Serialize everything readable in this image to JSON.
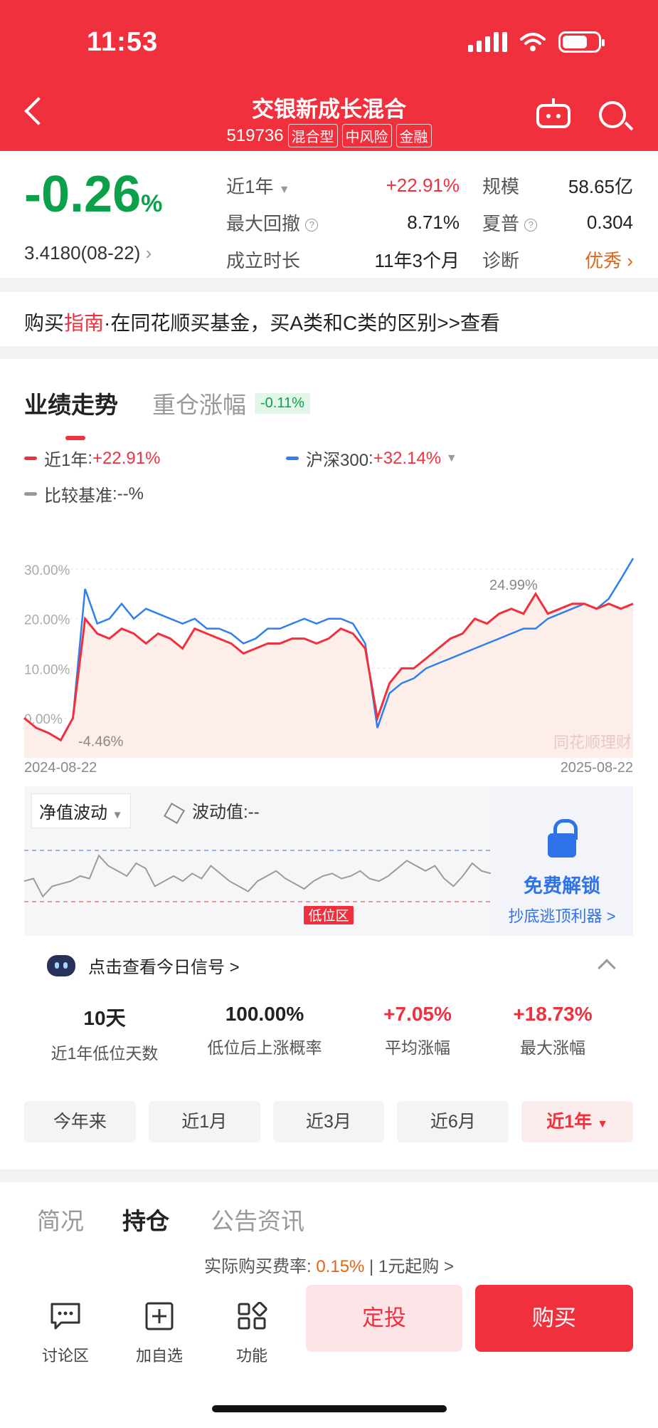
{
  "status": {
    "time": "11:53"
  },
  "header": {
    "title": "交银新成长混合",
    "code": "519736",
    "tags": [
      "混合型",
      "中风险",
      "金融"
    ]
  },
  "summary": {
    "change": "-0.26",
    "change_unit": "%",
    "nav": "3.4180(08-22)",
    "rows": [
      {
        "label": "近1年",
        "value": "+22.91%",
        "label2": "规模",
        "value2": "58.65亿"
      },
      {
        "label": "最大回撤",
        "value": "8.71%",
        "label2": "夏普",
        "value2": "0.304"
      },
      {
        "label": "成立时长",
        "value": "11年3个月",
        "label2": "诊断",
        "value2": "优秀"
      }
    ]
  },
  "guide": {
    "prefix": "购买",
    "highlight": "指南",
    "text": "·在同花顺买基金，买A类和C类的区别>>查看"
  },
  "perf": {
    "tab_active": "业绩走势",
    "tab_inactive": "重仓涨幅",
    "tab_badge": "-0.11%",
    "legend": [
      {
        "name": "近1年",
        "value": "+22.91%",
        "color": "#f0313d"
      },
      {
        "name": "沪深300",
        "value": "+32.14%",
        "color": "#2f80ed"
      },
      {
        "name": "比较基准",
        "value": "--%",
        "color": "#999999"
      }
    ]
  },
  "chart_data": {
    "type": "line",
    "y_ticks": [
      "30.00%",
      "20.00%",
      "10.00%",
      "0.00%"
    ],
    "ylim": [
      -8,
      35
    ],
    "x_ticks": [
      "2024-08-22",
      "2025-08-22"
    ],
    "annotations": [
      {
        "text": "24.99%"
      },
      {
        "text": "-4.46%"
      }
    ],
    "watermark": "同花顺理财",
    "series": [
      {
        "name": "近1年",
        "color": "#f0313d",
        "values": [
          0,
          -2,
          -3,
          -4.46,
          0,
          20,
          17,
          16,
          18,
          17,
          15,
          17,
          16,
          14,
          18,
          17,
          16,
          15,
          13,
          14,
          15,
          15,
          16,
          16,
          15,
          16,
          18,
          17,
          14,
          0,
          7,
          10,
          10,
          12,
          14,
          16,
          17,
          20,
          19,
          21,
          22,
          21,
          24.99,
          21,
          22,
          23,
          23,
          22,
          23,
          22,
          23
        ]
      },
      {
        "name": "沪深300",
        "color": "#2f80ed",
        "values": [
          0,
          -2,
          -3,
          -4.4,
          0,
          26,
          19,
          20,
          23,
          20,
          22,
          21,
          20,
          19,
          20,
          18,
          18,
          17,
          15,
          16,
          18,
          18,
          19,
          20,
          19,
          20,
          20,
          19,
          15,
          -2,
          5,
          7,
          8,
          10,
          11,
          12,
          13,
          14,
          15,
          16,
          17,
          18,
          18,
          20,
          21,
          22,
          23,
          22,
          24,
          28,
          32.14
        ]
      }
    ]
  },
  "volatility": {
    "select": "净值波动",
    "value_label": "波动值:--",
    "low_label": "低位区",
    "series": [
      0.4,
      0.45,
      0.1,
      0.3,
      0.35,
      0.4,
      0.5,
      0.45,
      0.9,
      0.7,
      0.6,
      0.5,
      0.75,
      0.65,
      0.3,
      0.4,
      0.5,
      0.4,
      0.55,
      0.45,
      0.7,
      0.55,
      0.4,
      0.3,
      0.2,
      0.4,
      0.5,
      0.6,
      0.45,
      0.35,
      0.25,
      0.4,
      0.5,
      0.55,
      0.45,
      0.5,
      0.6,
      0.45,
      0.4,
      0.5,
      0.65,
      0.8,
      0.7,
      0.6,
      0.7,
      0.45,
      0.3,
      0.5,
      0.75,
      0.6,
      0.55
    ],
    "unlock_title": "免费解锁",
    "unlock_sub": "抄底逃顶利器 >"
  },
  "signal": {
    "head": "点击查看今日信号 >",
    "stats": [
      {
        "value": "10天",
        "label": "近1年低位天数",
        "color": "#222222"
      },
      {
        "value": "100.00%",
        "label": "低位后上涨概率",
        "color": "#222222"
      },
      {
        "value": "+7.05%",
        "label": "平均涨幅",
        "color": "#f0313d"
      },
      {
        "value": "+18.73%",
        "label": "最大涨幅",
        "color": "#f0313d"
      }
    ]
  },
  "periods": [
    "今年来",
    "近1月",
    "近3月",
    "近6月",
    "近1年"
  ],
  "section_tabs": [
    "简况",
    "持仓",
    "公告资讯"
  ],
  "bottom": {
    "fee_label": "实际购买费率: ",
    "fee_value": "0.15%",
    "fee_suffix": " | 1元起购 >",
    "buttons": [
      "讨论区",
      "加自选",
      "功能"
    ],
    "dingtou": "定投",
    "buy": "购买"
  }
}
